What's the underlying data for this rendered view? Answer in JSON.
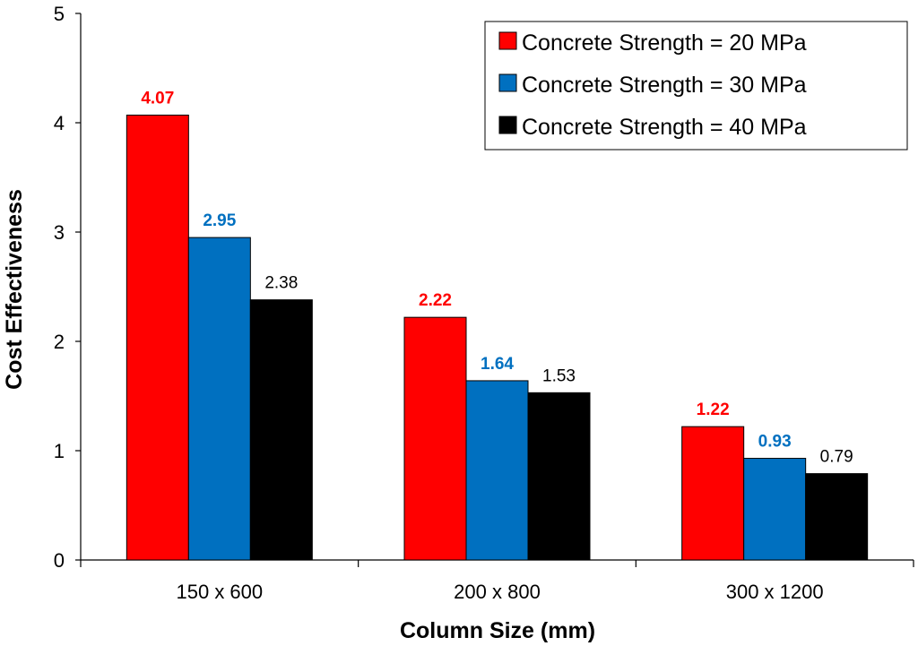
{
  "chart_data": {
    "type": "bar",
    "title": "",
    "xlabel": "Column Size (mm)",
    "ylabel": "Cost Effectiveness",
    "ylim": [
      0,
      5
    ],
    "yticks": [
      "0",
      "1",
      "2",
      "3",
      "4",
      "5"
    ],
    "categories": [
      "150 x 600",
      "200 x 800",
      "300 x 1200"
    ],
    "series": [
      {
        "name": "Concrete Strength = 20 MPa",
        "values": [
          4.07,
          2.22,
          1.22
        ],
        "labels": [
          "4.07",
          "2.22",
          "1.22"
        ],
        "color": "#FF0000",
        "label_color": "#FF0000",
        "label_bold": true
      },
      {
        "name": "Concrete Strength = 30 MPa",
        "values": [
          2.95,
          1.64,
          0.93
        ],
        "labels": [
          "2.95",
          "1.64",
          "0.93"
        ],
        "color": "#0070C0",
        "label_color": "#0070C0",
        "label_bold": true
      },
      {
        "name": "Concrete Strength = 40 MPa",
        "values": [
          2.38,
          1.53,
          0.79
        ],
        "labels": [
          "2.38",
          "1.53",
          "0.79"
        ],
        "color": "#000000",
        "label_color": "#000000",
        "label_bold": false
      }
    ],
    "legend_position": "top-right",
    "grid": false
  }
}
